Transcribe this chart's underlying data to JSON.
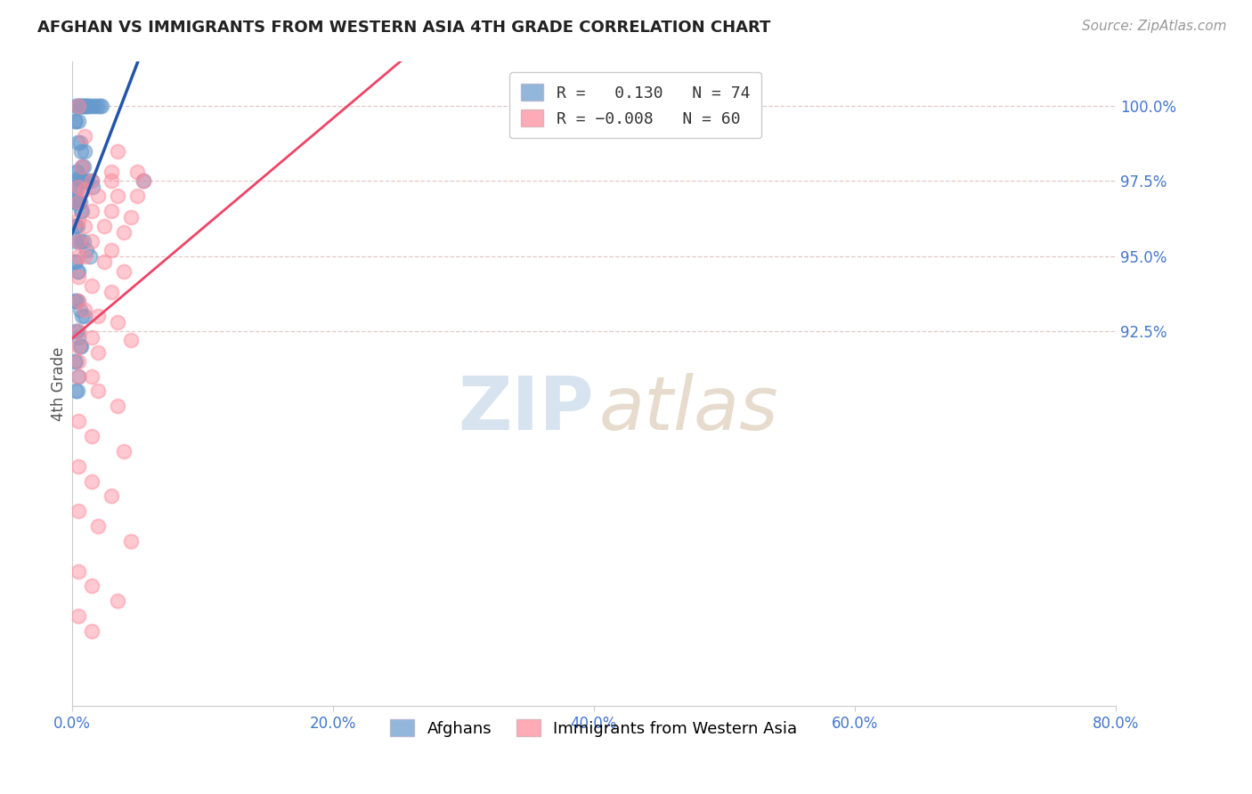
{
  "title": "AFGHAN VS IMMIGRANTS FROM WESTERN ASIA 4TH GRADE CORRELATION CHART",
  "source": "Source: ZipAtlas.com",
  "ylabel": "4th Grade",
  "xmin": 0.0,
  "xmax": 80.0,
  "ymin": 80.0,
  "ymax": 101.5,
  "blue_R": 0.13,
  "blue_N": 74,
  "pink_R": -0.008,
  "pink_N": 60,
  "blue_color": "#6699cc",
  "pink_color": "#ff8899",
  "blue_line_color": "#2255aa",
  "pink_line_color": "#ee4466",
  "trend_dash_color": "#aabbcc",
  "blue_x": [
    0.3,
    0.4,
    0.5,
    0.6,
    0.7,
    0.8,
    0.9,
    1.0,
    1.1,
    1.2,
    1.3,
    1.5,
    1.7,
    1.9,
    2.1,
    2.3,
    0.2,
    0.3,
    0.5,
    0.4,
    0.6,
    0.7,
    0.8,
    0.9,
    1.0,
    0.3,
    0.4,
    0.5,
    0.6,
    0.8,
    1.0,
    1.2,
    1.5,
    0.2,
    0.3,
    0.4,
    0.2,
    0.3,
    0.4,
    0.5,
    0.6,
    0.7,
    0.8,
    0.2,
    0.3,
    0.4,
    0.3,
    0.5,
    0.7,
    0.9,
    1.1,
    1.4,
    0.2,
    0.3,
    0.4,
    0.5,
    0.2,
    0.3,
    0.4,
    0.6,
    0.8,
    1.0,
    5.5,
    1.6,
    0.3,
    0.4,
    0.5,
    0.6,
    0.7,
    0.2,
    0.3,
    0.5,
    0.3,
    0.4
  ],
  "blue_y": [
    100.0,
    100.0,
    100.0,
    100.0,
    100.0,
    100.0,
    100.0,
    100.0,
    100.0,
    100.0,
    100.0,
    100.0,
    100.0,
    100.0,
    100.0,
    100.0,
    99.5,
    99.5,
    99.5,
    98.8,
    98.8,
    98.5,
    98.0,
    98.0,
    98.5,
    97.8,
    97.8,
    97.6,
    97.6,
    97.5,
    97.5,
    97.5,
    97.5,
    97.3,
    97.2,
    97.2,
    96.8,
    96.8,
    96.8,
    96.8,
    96.8,
    96.5,
    96.5,
    96.0,
    96.0,
    96.0,
    95.5,
    95.5,
    95.5,
    95.5,
    95.2,
    95.0,
    94.8,
    94.8,
    94.5,
    94.5,
    93.5,
    93.5,
    93.5,
    93.2,
    93.0,
    93.0,
    97.5,
    97.3,
    92.5,
    92.5,
    92.3,
    92.0,
    92.0,
    91.5,
    91.5,
    91.0,
    90.5,
    90.5
  ],
  "pink_x": [
    0.5,
    1.0,
    3.5,
    0.8,
    3.0,
    5.0,
    1.5,
    3.0,
    5.5,
    0.5,
    1.0,
    2.0,
    3.5,
    5.0,
    0.5,
    1.5,
    3.0,
    4.5,
    0.5,
    1.0,
    2.5,
    4.0,
    0.5,
    1.5,
    3.0,
    0.5,
    1.0,
    2.5,
    4.0,
    0.5,
    1.5,
    3.0,
    0.5,
    1.0,
    2.0,
    3.5,
    0.5,
    1.5,
    4.5,
    0.5,
    2.0,
    0.5,
    1.5,
    0.5,
    2.0,
    3.5,
    0.5,
    1.5,
    4.0,
    0.5,
    1.5,
    3.0,
    0.5,
    2.0,
    4.5,
    0.5,
    1.5,
    3.5,
    0.5,
    1.5
  ],
  "pink_y": [
    100.0,
    99.0,
    98.5,
    98.0,
    97.8,
    97.8,
    97.5,
    97.5,
    97.5,
    97.3,
    97.2,
    97.0,
    97.0,
    97.0,
    96.8,
    96.5,
    96.5,
    96.3,
    96.2,
    96.0,
    96.0,
    95.8,
    95.5,
    95.5,
    95.2,
    95.0,
    95.0,
    94.8,
    94.5,
    94.3,
    94.0,
    93.8,
    93.5,
    93.2,
    93.0,
    92.8,
    92.5,
    92.3,
    92.2,
    92.0,
    91.8,
    91.5,
    91.0,
    91.0,
    90.5,
    90.0,
    89.5,
    89.0,
    88.5,
    88.0,
    87.5,
    87.0,
    86.5,
    86.0,
    85.5,
    84.5,
    84.0,
    83.5,
    83.0,
    82.5
  ],
  "ytick_right": [
    92.5,
    95.0,
    97.5,
    100.0
  ],
  "ytick_right_labels": [
    "92.5%",
    "95.0%",
    "97.5%",
    "100.0%"
  ],
  "xticks": [
    0,
    20,
    40,
    60,
    80
  ],
  "xtick_labels": [
    "0.0%",
    "20.0%",
    "40.0%",
    "60.0%",
    "80.0%"
  ],
  "grid_color": "#ddbbbb",
  "axis_label_color": "#4477cc",
  "title_color": "#222222",
  "source_color": "#999999"
}
